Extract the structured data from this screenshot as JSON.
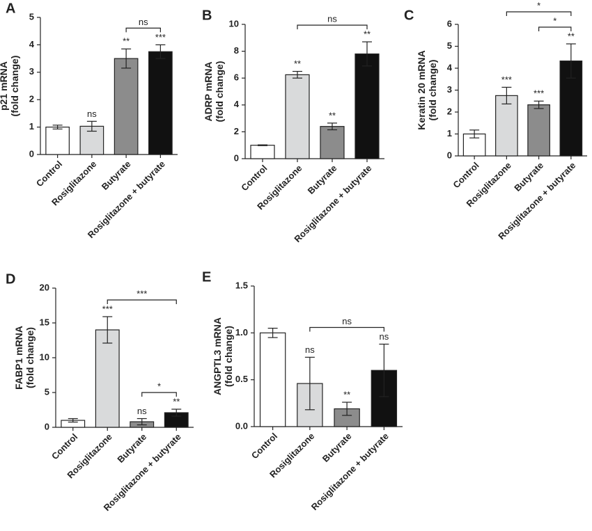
{
  "chart_data": [
    {
      "type": "bar",
      "panel": "A",
      "ylabel": [
        "p21 mRNA",
        "(fold change)"
      ],
      "categories": [
        "Control",
        "Rosiglitazone",
        "Butyrate",
        "Rosiglitazone + butyrate"
      ],
      "values": [
        1.0,
        1.03,
        3.5,
        3.75
      ],
      "errors": [
        0.07,
        0.18,
        0.35,
        0.25
      ],
      "colors": [
        "#ffffff",
        "#d9dadb",
        "#8c8c8c",
        "#111111"
      ],
      "annotations": [
        null,
        "ns",
        "**",
        "***"
      ],
      "brackets": [
        {
          "between": [
            2,
            3
          ],
          "label": "ns"
        }
      ],
      "ylim": [
        0,
        5
      ],
      "yticks": [
        0,
        1,
        2,
        3,
        4,
        5
      ]
    },
    {
      "type": "bar",
      "panel": "B",
      "ylabel": [
        "ADRP mRNA",
        "(fold change)"
      ],
      "categories": [
        "Control",
        "Rosiglitazone",
        "Butyrate",
        "Rosiglitazone + butyrate"
      ],
      "values": [
        1.0,
        6.25,
        2.4,
        7.8
      ],
      "errors": [
        0.03,
        0.25,
        0.25,
        0.9
      ],
      "colors": [
        "#ffffff",
        "#d9dadb",
        "#8c8c8c",
        "#111111"
      ],
      "annotations": [
        null,
        "**",
        "**",
        "**"
      ],
      "brackets": [
        {
          "between": [
            1,
            3
          ],
          "label": "ns"
        }
      ],
      "ylim": [
        0,
        10
      ],
      "yticks": [
        0,
        2,
        4,
        6,
        8,
        10
      ]
    },
    {
      "type": "bar",
      "panel": "C",
      "ylabel": [
        "Keratin 20 mRNA",
        "(fold change)"
      ],
      "categories": [
        "Control",
        "Rosiglitazone",
        "Butyrate",
        "Rosiglitazone + butyrate"
      ],
      "values": [
        1.0,
        2.75,
        2.33,
        4.33
      ],
      "errors": [
        0.18,
        0.38,
        0.17,
        0.78
      ],
      "colors": [
        "#ffffff",
        "#d9dadb",
        "#8c8c8c",
        "#111111"
      ],
      "annotations": [
        null,
        "***",
        "***",
        "**"
      ],
      "brackets": [
        {
          "between": [
            2,
            3
          ],
          "label": "*"
        },
        {
          "between": [
            1,
            3
          ],
          "label": "*"
        }
      ],
      "ylim": [
        0,
        6
      ],
      "yticks": [
        0,
        1,
        2,
        3,
        4,
        5,
        6
      ]
    },
    {
      "type": "bar",
      "panel": "D",
      "ylabel": [
        "FABP1 mRNA",
        "(fold change)"
      ],
      "categories": [
        "Control",
        "Rosiglitazone",
        "Butyrate",
        "Rosiglitazone + butyrate"
      ],
      "values": [
        1.0,
        14.0,
        0.8,
        2.1
      ],
      "errors": [
        0.25,
        1.9,
        0.45,
        0.5
      ],
      "colors": [
        "#ffffff",
        "#d9dadb",
        "#8c8c8c",
        "#111111"
      ],
      "annotations": [
        null,
        "***",
        "ns",
        "**"
      ],
      "brackets": [
        {
          "between": [
            2,
            3
          ],
          "label": "*"
        },
        {
          "between": [
            1,
            3
          ],
          "label": "***"
        }
      ],
      "ylim": [
        0,
        20
      ],
      "yticks": [
        0,
        5,
        10,
        15,
        20
      ]
    },
    {
      "type": "bar",
      "panel": "E",
      "ylabel": [
        "ANGPTL3 mRNA",
        "(fold change)"
      ],
      "categories": [
        "Control",
        "Rosiglitazone",
        "Butyrate",
        "Rosiglitazone + butyrate"
      ],
      "values": [
        1.0,
        0.46,
        0.19,
        0.6
      ],
      "errors": [
        0.05,
        0.28,
        0.07,
        0.28
      ],
      "colors": [
        "#ffffff",
        "#d9dadb",
        "#8c8c8c",
        "#111111"
      ],
      "annotations": [
        null,
        "ns",
        "**",
        "ns"
      ],
      "brackets": [
        {
          "between": [
            1,
            3
          ],
          "label": "ns"
        }
      ],
      "ylim": [
        0,
        1.5
      ],
      "yticks": [
        {
          "value": 0,
          "label": "0.0"
        },
        0.5,
        {
          "value": 1,
          "label": "1.0"
        },
        1.5
      ]
    }
  ]
}
